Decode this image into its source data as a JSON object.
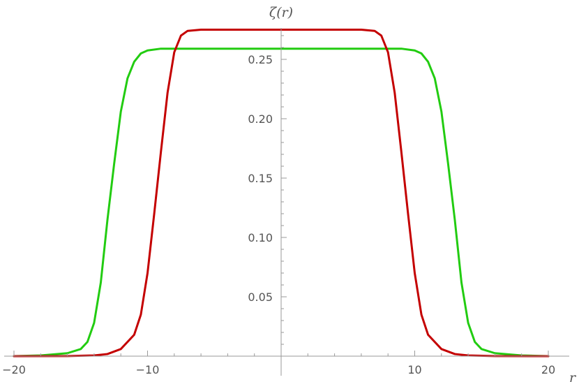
{
  "chart_data": {
    "type": "line",
    "title": "",
    "xlabel": "r",
    "ylabel": "ζ(r)",
    "xlim": [
      -20,
      20
    ],
    "ylim": [
      0,
      0.28
    ],
    "grid": false,
    "x_ticks": [
      {
        "value": -20,
        "label": "−20"
      },
      {
        "value": -10,
        "label": "−10"
      },
      {
        "value": 10,
        "label": "10"
      },
      {
        "value": 20,
        "label": "20"
      }
    ],
    "y_ticks": [
      {
        "value": 0.05,
        "label": "0.05"
      },
      {
        "value": 0.1,
        "label": "0.10"
      },
      {
        "value": 0.15,
        "label": "0.15"
      },
      {
        "value": 0.2,
        "label": "0.20"
      },
      {
        "value": 0.25,
        "label": "0.25"
      }
    ],
    "series": [
      {
        "color": "#22cc11",
        "x": [
          -20,
          -18,
          -16,
          -15,
          -14.5,
          -14,
          -13.5,
          -13,
          -12.5,
          -12,
          -11.5,
          -11,
          -10.5,
          -10,
          -9,
          -8,
          -6,
          -4,
          0,
          4,
          6,
          8,
          9,
          10,
          10.5,
          11,
          11.5,
          12,
          12.5,
          13,
          13.5,
          14,
          14.5,
          15,
          16,
          18,
          20
        ],
        "y": [
          0.0,
          0.0006,
          0.0025,
          0.006,
          0.012,
          0.028,
          0.062,
          0.115,
          0.162,
          0.206,
          0.234,
          0.248,
          0.255,
          0.2575,
          0.259,
          0.259,
          0.259,
          0.259,
          0.259,
          0.259,
          0.259,
          0.259,
          0.259,
          0.2575,
          0.255,
          0.248,
          0.234,
          0.206,
          0.162,
          0.115,
          0.062,
          0.028,
          0.012,
          0.006,
          0.0025,
          0.0006,
          0.0
        ]
      },
      {
        "color": "#c40000",
        "x": [
          -20,
          -16,
          -14,
          -13,
          -12,
          -11,
          -10.5,
          -10,
          -9.5,
          -9,
          -8.5,
          -8,
          -7.5,
          -7,
          -6,
          -4,
          0,
          4,
          6,
          7,
          7.5,
          8,
          8.5,
          9,
          9.5,
          10,
          10.5,
          11,
          12,
          13,
          14,
          16,
          20
        ],
        "y": [
          0.0,
          0.0001,
          0.0006,
          0.0018,
          0.006,
          0.018,
          0.035,
          0.07,
          0.12,
          0.172,
          0.222,
          0.256,
          0.27,
          0.274,
          0.275,
          0.275,
          0.275,
          0.275,
          0.275,
          0.274,
          0.27,
          0.256,
          0.222,
          0.172,
          0.12,
          0.07,
          0.035,
          0.018,
          0.006,
          0.0018,
          0.0006,
          0.0001,
          0.0
        ]
      }
    ]
  }
}
